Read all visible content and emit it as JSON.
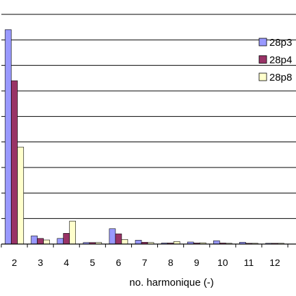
{
  "chart_data": {
    "type": "bar",
    "title": "",
    "xlabel": "no. harmonique (-)",
    "ylabel": "",
    "categories": [
      "2",
      "3",
      "4",
      "5",
      "6",
      "7",
      "8",
      "9",
      "10",
      "11",
      "12"
    ],
    "series": [
      {
        "name": "28p3",
        "color": "#9999FF",
        "values": [
          8.4,
          0.32,
          0.22,
          0.06,
          0.6,
          0.15,
          0.04,
          0.08,
          0.13,
          0.07,
          0.03
        ]
      },
      {
        "name": "28p4",
        "color": "#993366",
        "values": [
          6.4,
          0.22,
          0.42,
          0.06,
          0.4,
          0.07,
          0.04,
          0.04,
          0.04,
          0.03,
          0.03
        ]
      },
      {
        "name": "28p8",
        "color": "#FFFFCC",
        "values": [
          3.8,
          0.16,
          0.9,
          0.06,
          0.18,
          0.06,
          0.1,
          0.05,
          0.03,
          0.03,
          0.03
        ]
      }
    ],
    "ylim": [
      0,
      9
    ],
    "ytick_step": 1,
    "grid": true,
    "legend_position": "top-right"
  }
}
